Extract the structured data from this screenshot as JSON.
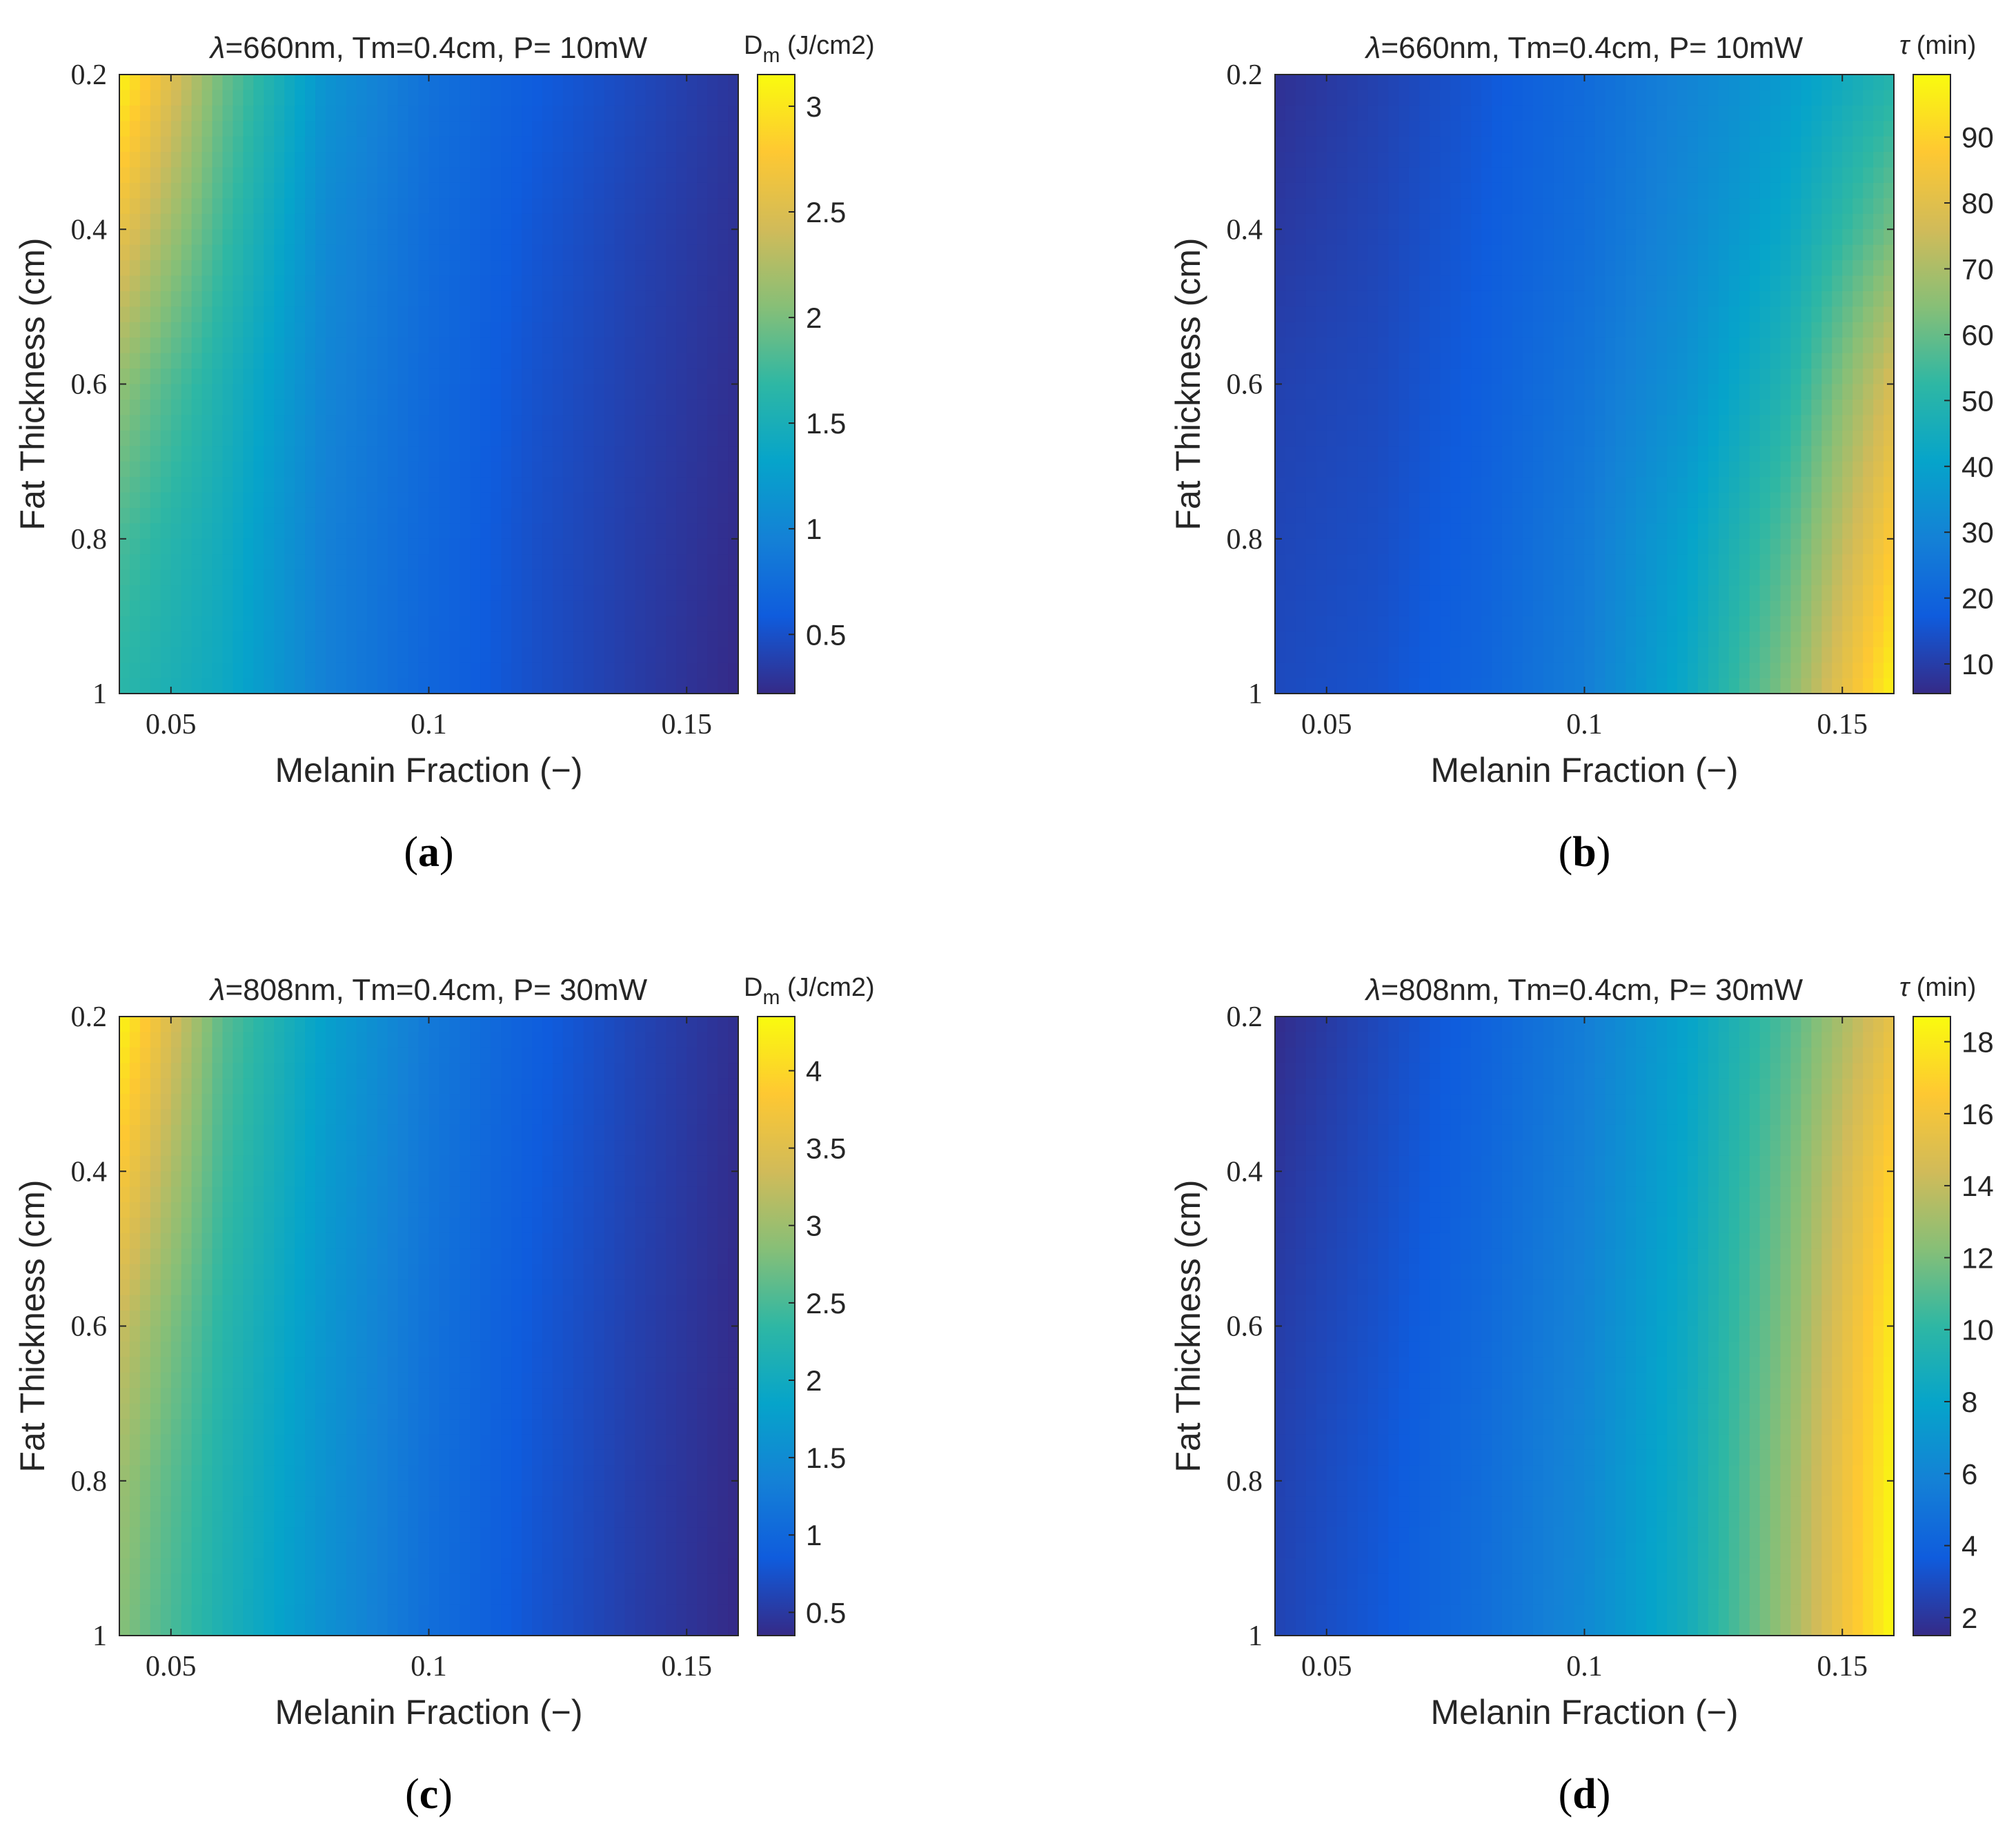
{
  "colormap": {
    "name": "parula",
    "stops": [
      "#352a87",
      "#0f5cdd",
      "#1481d6",
      "#06a4ca",
      "#2eb7a4",
      "#87bf77",
      "#d1bb59",
      "#fec832",
      "#f9fb0e"
    ]
  },
  "chart_data": [
    {
      "id": "a",
      "type": "heatmap",
      "caption": "(a)",
      "title_prefix": "λ",
      "title_rest": "=660nm, Tm=0.4cm, P= 10mW",
      "xlabel": "Melanin Fraction (−)",
      "ylabel": "Fat Thickness (cm)",
      "xlim": [
        0.04,
        0.16
      ],
      "ylim": [
        0.2,
        1.0
      ],
      "y_reversed": true,
      "xticks": [
        0.05,
        0.1,
        0.15
      ],
      "xtick_labels": [
        "0.05",
        "0.1",
        "0.15"
      ],
      "yticks": [
        0.2,
        0.4,
        0.6,
        0.8,
        1.0
      ],
      "ytick_labels": [
        "0.2",
        "0.4",
        "0.6",
        "0.8",
        "1"
      ],
      "colorbar": {
        "label_symbol": "D",
        "label_sub": "m",
        "label_unit": " (J/cm2)",
        "range": [
          0.22,
          3.15
        ],
        "ticks": [
          0.5,
          1,
          1.5,
          2,
          2.5,
          3
        ],
        "tick_labels": [
          "0.5",
          "1",
          "1.5",
          "2",
          "2.5",
          "3"
        ]
      },
      "field": {
        "x": [
          0.04,
          0.06,
          0.08,
          0.1,
          0.12,
          0.14,
          0.16
        ],
        "y": [
          0.2,
          0.4,
          0.6,
          0.8,
          1.0
        ],
        "z": [
          [
            3.1,
            1.95,
            1.15,
            0.8,
            0.6,
            0.45,
            0.3
          ],
          [
            2.6,
            1.75,
            1.05,
            0.75,
            0.55,
            0.4,
            0.28
          ],
          [
            2.1,
            1.55,
            1.0,
            0.72,
            0.52,
            0.38,
            0.26
          ],
          [
            1.8,
            1.45,
            0.95,
            0.7,
            0.5,
            0.36,
            0.24
          ],
          [
            1.65,
            1.4,
            0.95,
            0.68,
            0.5,
            0.35,
            0.22
          ]
        ]
      }
    },
    {
      "id": "b",
      "type": "heatmap",
      "caption": "(b)",
      "title_prefix": "λ",
      "title_rest": "=660nm, Tm=0.4cm, P= 10mW",
      "xlabel": "Melanin Fraction (−)",
      "ylabel": "Fat Thickness (cm)",
      "xlim": [
        0.04,
        0.16
      ],
      "ylim": [
        0.2,
        1.0
      ],
      "y_reversed": true,
      "xticks": [
        0.05,
        0.1,
        0.15
      ],
      "xtick_labels": [
        "0.05",
        "0.1",
        "0.15"
      ],
      "yticks": [
        0.2,
        0.4,
        0.6,
        0.8,
        1.0
      ],
      "ytick_labels": [
        "0.2",
        "0.4",
        "0.6",
        "0.8",
        "1"
      ],
      "colorbar": {
        "label_symbol": "τ",
        "label_sub": "",
        "label_unit": " (min)",
        "range": [
          5.5,
          99.5
        ],
        "ticks": [
          10,
          20,
          30,
          40,
          50,
          60,
          70,
          80,
          90
        ],
        "tick_labels": [
          "10",
          "20",
          "30",
          "40",
          "50",
          "60",
          "70",
          "80",
          "90"
        ]
      },
      "field": {
        "x": [
          0.04,
          0.06,
          0.08,
          0.1,
          0.12,
          0.14,
          0.16
        ],
        "y": [
          0.2,
          0.4,
          0.6,
          0.8,
          1.0
        ],
        "z": [
          [
            7,
            11,
            16,
            22,
            30,
            38,
            50
          ],
          [
            9,
            12,
            17,
            23,
            32,
            43,
            62
          ],
          [
            11,
            13,
            18,
            25,
            35,
            50,
            78
          ],
          [
            12,
            14,
            19,
            27,
            40,
            58,
            88
          ],
          [
            13,
            15,
            20,
            28,
            43,
            65,
            98
          ]
        ]
      }
    },
    {
      "id": "c",
      "type": "heatmap",
      "caption": "(c)",
      "title_prefix": "λ",
      "title_rest": "=808nm, Tm=0.4cm, P= 30mW",
      "xlabel": "Melanin Fraction (−)",
      "ylabel": "Fat Thickness (cm)",
      "xlim": [
        0.04,
        0.16
      ],
      "ylim": [
        0.2,
        1.0
      ],
      "y_reversed": true,
      "xticks": [
        0.05,
        0.1,
        0.15
      ],
      "xtick_labels": [
        "0.05",
        "0.1",
        "0.15"
      ],
      "yticks": [
        0.2,
        0.4,
        0.6,
        0.8,
        1.0
      ],
      "ytick_labels": [
        "0.2",
        "0.4",
        "0.6",
        "0.8",
        "1"
      ],
      "colorbar": {
        "label_symbol": "D",
        "label_sub": "m",
        "label_unit": " (J/cm2)",
        "range": [
          0.35,
          4.35
        ],
        "ticks": [
          0.5,
          1,
          1.5,
          2,
          2.5,
          3,
          3.5,
          4
        ],
        "tick_labels": [
          "0.5",
          "1",
          "1.5",
          "2",
          "2.5",
          "3",
          "3.5",
          "4"
        ]
      },
      "field": {
        "x": [
          0.04,
          0.06,
          0.08,
          0.1,
          0.12,
          0.14,
          0.16
        ],
        "y": [
          0.2,
          0.4,
          0.6,
          0.8,
          1.0
        ],
        "z": [
          [
            4.3,
            2.6,
            1.8,
            1.25,
            0.9,
            0.62,
            0.4
          ],
          [
            3.8,
            2.45,
            1.72,
            1.2,
            0.86,
            0.6,
            0.38
          ],
          [
            3.3,
            2.3,
            1.65,
            1.15,
            0.82,
            0.57,
            0.37
          ],
          [
            3.0,
            2.2,
            1.6,
            1.12,
            0.8,
            0.55,
            0.36
          ],
          [
            2.85,
            2.15,
            1.58,
            1.1,
            0.78,
            0.54,
            0.35
          ]
        ]
      }
    },
    {
      "id": "d",
      "type": "heatmap",
      "caption": "(d)",
      "title_prefix": "λ",
      "title_rest": "=808nm, Tm=0.4cm, P= 30mW",
      "xlabel": "Melanin Fraction (−)",
      "ylabel": "Fat Thickness (cm)",
      "xlim": [
        0.04,
        0.16
      ],
      "ylim": [
        0.2,
        1.0
      ],
      "y_reversed": true,
      "xticks": [
        0.05,
        0.1,
        0.15
      ],
      "xtick_labels": [
        "0.05",
        "0.1",
        "0.15"
      ],
      "yticks": [
        0.2,
        0.4,
        0.6,
        0.8,
        1.0
      ],
      "ytick_labels": [
        "0.2",
        "0.4",
        "0.6",
        "0.8",
        "1"
      ],
      "colorbar": {
        "label_symbol": "τ",
        "label_sub": "",
        "label_unit": " (min)",
        "range": [
          1.5,
          18.7
        ],
        "ticks": [
          2,
          4,
          6,
          8,
          10,
          12,
          14,
          16,
          18
        ],
        "tick_labels": [
          "2",
          "4",
          "6",
          "8",
          "10",
          "12",
          "14",
          "16",
          "18"
        ]
      },
      "field": {
        "x": [
          0.04,
          0.06,
          0.08,
          0.1,
          0.12,
          0.14,
          0.16
        ],
        "y": [
          0.2,
          0.4,
          0.6,
          0.8,
          1.0
        ],
        "z": [
          [
            1.6,
            2.8,
            4.0,
            5.6,
            7.9,
            11.0,
            15.5
          ],
          [
            2.0,
            3.0,
            4.2,
            5.8,
            8.2,
            11.8,
            17.0
          ],
          [
            2.3,
            3.2,
            4.4,
            6.0,
            8.5,
            12.3,
            18.0
          ],
          [
            2.5,
            3.4,
            4.6,
            6.2,
            8.7,
            12.8,
            18.5
          ],
          [
            2.6,
            3.5,
            4.7,
            6.3,
            8.8,
            13.0,
            18.7
          ]
        ]
      }
    }
  ]
}
